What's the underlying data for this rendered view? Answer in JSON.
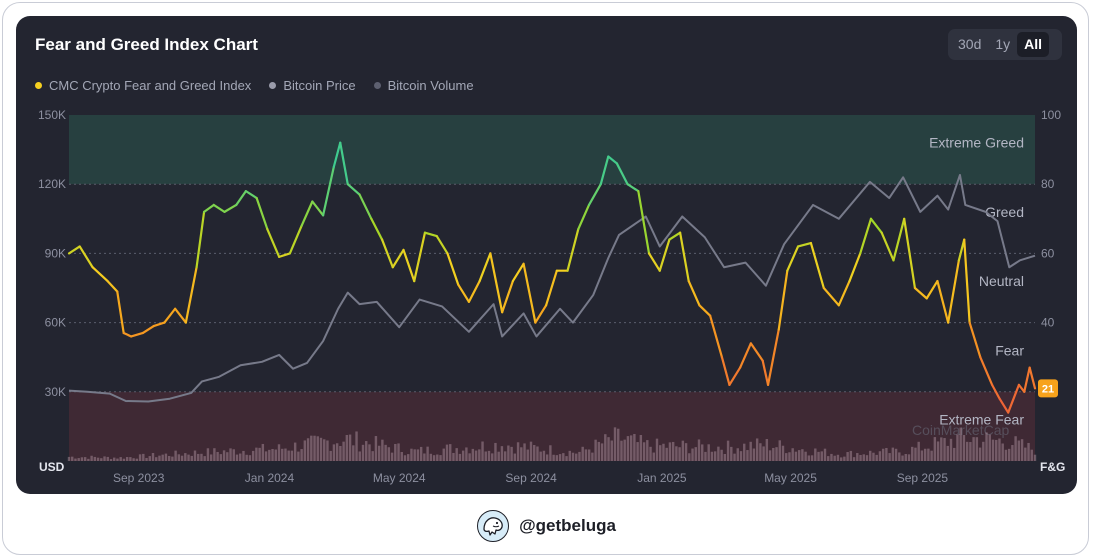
{
  "title": "Fear and Greed Index Chart",
  "range_buttons": [
    "30d",
    "1y",
    "All"
  ],
  "active_range": "All",
  "legend": [
    {
      "label": "CMC Crypto Fear and Greed Index",
      "color": "#f5d020"
    },
    {
      "label": "Bitcoin Price",
      "color": "#9a9cab"
    },
    {
      "label": "Bitcoin Volume",
      "color": "#5d6070"
    }
  ],
  "watermark": "CoinMarketCap",
  "footer": {
    "handle": "@getbeluga"
  },
  "colors": {
    "card": "#232530",
    "extreme_greed_band": "#2a4a45",
    "extreme_fear_band": "#4a2b35",
    "price_line": "#777a8a",
    "volume": "#b59aa6",
    "current_badge": "#f7a21b"
  },
  "chart_data": {
    "type": "line",
    "x_ticks": [
      "Sep 2023",
      "Jan 2024",
      "May 2024",
      "Sep 2024",
      "Jan 2025",
      "May 2025",
      "Sep 2025"
    ],
    "left_axis": {
      "unit": "USD",
      "ticks": [
        "150K",
        "120K",
        "90K",
        "60K",
        "30K"
      ],
      "range": [
        0,
        150000
      ]
    },
    "right_axis": {
      "unit": "F&G",
      "ticks": [
        "100",
        "80",
        "60",
        "40",
        "20"
      ],
      "range": [
        0,
        100
      ]
    },
    "zones": [
      {
        "label": "Extreme Greed",
        "range": [
          80,
          100
        ]
      },
      {
        "label": "Greed",
        "range": [
          60,
          80
        ]
      },
      {
        "label": "Neutral",
        "range": [
          40,
          60
        ]
      },
      {
        "label": "Fear",
        "range": [
          20,
          40
        ]
      },
      {
        "label": "Extreme Fear",
        "range": [
          0,
          20
        ]
      }
    ],
    "current_value": "21",
    "x_range": [
      "2023-06-28",
      "2025-12-15"
    ],
    "series": [
      {
        "name": "CMC Crypto Fear and Greed Index",
        "points": [
          [
            "2023-06-28",
            60
          ],
          [
            "2023-07-08",
            62
          ],
          [
            "2023-07-20",
            56
          ],
          [
            "2023-08-03",
            52
          ],
          [
            "2023-08-12",
            49
          ],
          [
            "2023-08-18",
            37
          ],
          [
            "2023-08-25",
            36
          ],
          [
            "2023-09-05",
            37
          ],
          [
            "2023-09-15",
            39
          ],
          [
            "2023-09-25",
            40
          ],
          [
            "2023-10-05",
            44
          ],
          [
            "2023-10-15",
            40
          ],
          [
            "2023-10-25",
            56
          ],
          [
            "2023-11-01",
            72
          ],
          [
            "2023-11-10",
            74
          ],
          [
            "2023-11-20",
            72
          ],
          [
            "2023-12-01",
            74
          ],
          [
            "2023-12-10",
            78
          ],
          [
            "2023-12-20",
            76
          ],
          [
            "2023-12-30",
            67
          ],
          [
            "2024-01-10",
            59
          ],
          [
            "2024-01-20",
            60
          ],
          [
            "2024-01-31",
            68
          ],
          [
            "2024-02-10",
            75
          ],
          [
            "2024-02-20",
            71
          ],
          [
            "2024-03-01",
            85
          ],
          [
            "2024-03-07",
            92
          ],
          [
            "2024-03-14",
            80
          ],
          [
            "2024-03-25",
            77
          ],
          [
            "2024-04-05",
            70
          ],
          [
            "2024-04-15",
            64
          ],
          [
            "2024-04-25",
            56
          ],
          [
            "2024-05-05",
            61
          ],
          [
            "2024-05-15",
            52
          ],
          [
            "2024-05-25",
            66
          ],
          [
            "2024-06-05",
            65
          ],
          [
            "2024-06-15",
            60
          ],
          [
            "2024-06-25",
            51
          ],
          [
            "2024-07-05",
            46
          ],
          [
            "2024-07-15",
            52
          ],
          [
            "2024-07-25",
            60
          ],
          [
            "2024-08-05",
            43
          ],
          [
            "2024-08-15",
            52
          ],
          [
            "2024-08-25",
            57
          ],
          [
            "2024-09-05",
            40
          ],
          [
            "2024-09-15",
            45
          ],
          [
            "2024-09-25",
            55
          ],
          [
            "2024-10-05",
            55
          ],
          [
            "2024-10-15",
            67
          ],
          [
            "2024-10-25",
            74
          ],
          [
            "2024-11-05",
            80
          ],
          [
            "2024-11-12",
            88
          ],
          [
            "2024-11-20",
            86
          ],
          [
            "2024-11-30",
            80
          ],
          [
            "2024-12-10",
            78
          ],
          [
            "2024-12-20",
            60
          ],
          [
            "2024-12-30",
            55
          ],
          [
            "2025-01-08",
            64
          ],
          [
            "2025-01-18",
            66
          ],
          [
            "2025-01-26",
            52
          ],
          [
            "2025-02-05",
            45
          ],
          [
            "2025-02-15",
            42
          ],
          [
            "2025-02-26",
            30
          ],
          [
            "2025-03-05",
            22
          ],
          [
            "2025-03-15",
            27
          ],
          [
            "2025-03-25",
            34
          ],
          [
            "2025-04-05",
            29
          ],
          [
            "2025-04-10",
            22
          ],
          [
            "2025-04-20",
            38
          ],
          [
            "2025-04-28",
            55
          ],
          [
            "2025-05-08",
            62
          ],
          [
            "2025-05-20",
            63
          ],
          [
            "2025-06-01",
            50
          ],
          [
            "2025-06-15",
            45
          ],
          [
            "2025-06-25",
            52
          ],
          [
            "2025-07-05",
            60
          ],
          [
            "2025-07-15",
            70
          ],
          [
            "2025-07-25",
            66
          ],
          [
            "2025-08-05",
            58
          ],
          [
            "2025-08-15",
            70
          ],
          [
            "2025-08-25",
            50
          ],
          [
            "2025-09-05",
            47
          ],
          [
            "2025-09-15",
            52
          ],
          [
            "2025-09-25",
            40
          ],
          [
            "2025-10-05",
            58
          ],
          [
            "2025-10-10",
            64
          ],
          [
            "2025-10-15",
            40
          ],
          [
            "2025-10-25",
            30
          ],
          [
            "2025-11-05",
            22
          ],
          [
            "2025-11-12",
            18
          ],
          [
            "2025-11-20",
            14
          ],
          [
            "2025-11-30",
            22
          ],
          [
            "2025-12-05",
            20
          ],
          [
            "2025-12-10",
            27
          ],
          [
            "2025-12-15",
            21
          ]
        ]
      },
      {
        "name": "Bitcoin Price",
        "points": [
          [
            "2023-06-28",
            30500
          ],
          [
            "2023-07-15",
            30000
          ],
          [
            "2023-08-05",
            29200
          ],
          [
            "2023-08-20",
            26000
          ],
          [
            "2023-09-10",
            25800
          ],
          [
            "2023-09-30",
            27000
          ],
          [
            "2023-10-20",
            29500
          ],
          [
            "2023-10-30",
            34500
          ],
          [
            "2023-11-15",
            36500
          ],
          [
            "2023-12-05",
            41500
          ],
          [
            "2023-12-25",
            43000
          ],
          [
            "2024-01-10",
            46000
          ],
          [
            "2024-01-23",
            40000
          ],
          [
            "2024-02-05",
            42500
          ],
          [
            "2024-02-20",
            52000
          ],
          [
            "2024-03-05",
            66000
          ],
          [
            "2024-03-14",
            73000
          ],
          [
            "2024-03-25",
            68000
          ],
          [
            "2024-04-10",
            69000
          ],
          [
            "2024-05-01",
            58000
          ],
          [
            "2024-05-20",
            70000
          ],
          [
            "2024-06-10",
            67000
          ],
          [
            "2024-07-05",
            56000
          ],
          [
            "2024-07-28",
            68000
          ],
          [
            "2024-08-05",
            54000
          ],
          [
            "2024-08-25",
            64000
          ],
          [
            "2024-09-06",
            54000
          ],
          [
            "2024-09-28",
            66000
          ],
          [
            "2024-10-10",
            60000
          ],
          [
            "2024-10-29",
            72000
          ],
          [
            "2024-11-12",
            88000
          ],
          [
            "2024-11-22",
            98000
          ],
          [
            "2024-12-17",
            106000
          ],
          [
            "2024-12-30",
            93000
          ],
          [
            "2025-01-20",
            106000
          ],
          [
            "2025-02-10",
            97000
          ],
          [
            "2025-02-28",
            84000
          ],
          [
            "2025-03-20",
            86000
          ],
          [
            "2025-04-08",
            76000
          ],
          [
            "2025-04-25",
            94000
          ],
          [
            "2025-05-22",
            111000
          ],
          [
            "2025-06-15",
            105000
          ],
          [
            "2025-07-14",
            121000
          ],
          [
            "2025-08-01",
            114000
          ],
          [
            "2025-08-14",
            123000
          ],
          [
            "2025-08-30",
            108000
          ],
          [
            "2025-09-15",
            115000
          ],
          [
            "2025-09-25",
            109000
          ],
          [
            "2025-10-06",
            124000
          ],
          [
            "2025-10-11",
            111000
          ],
          [
            "2025-10-30",
            108000
          ],
          [
            "2025-11-10",
            104000
          ],
          [
            "2025-11-21",
            84000
          ],
          [
            "2025-12-01",
            87000
          ],
          [
            "2025-12-15",
            89000
          ]
        ]
      },
      {
        "name": "Bitcoin Volume",
        "points": [
          [
            "2023-06-28",
            15
          ],
          [
            "2023-08-15",
            12
          ],
          [
            "2023-10-25",
            30
          ],
          [
            "2024-01-10",
            45
          ],
          [
            "2024-03-12",
            80
          ],
          [
            "2024-05-15",
            35
          ],
          [
            "2024-08-05",
            60
          ],
          [
            "2024-10-15",
            30
          ],
          [
            "2024-11-20",
            85
          ],
          [
            "2024-12-20",
            55
          ],
          [
            "2025-03-05",
            50
          ],
          [
            "2025-04-08",
            60
          ],
          [
            "2025-06-15",
            25
          ],
          [
            "2025-08-15",
            35
          ],
          [
            "2025-10-10",
            85
          ],
          [
            "2025-11-21",
            70
          ],
          [
            "2025-12-15",
            40
          ]
        ]
      }
    ]
  }
}
